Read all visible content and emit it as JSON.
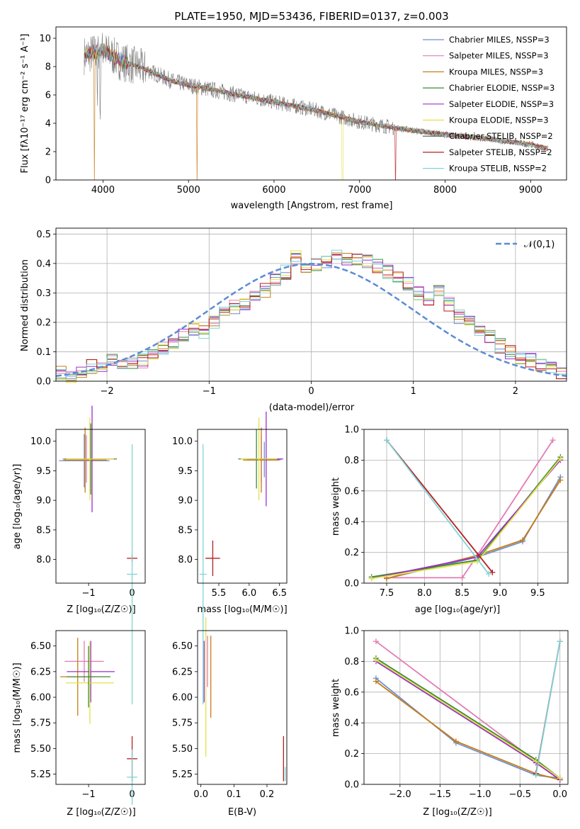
{
  "chart_data": [
    {
      "id": "spectrum",
      "type": "line",
      "title": "PLATE=1950, MJD=53436, FIBERID=0137, z=0.003",
      "xlabel": "wavelength [Angstrom, rest frame]",
      "ylabel": "Flux [fλ10⁻¹⁷ erg cm⁻² s⁻¹ A⁻¹]",
      "xlim": [
        3450,
        9420
      ],
      "ylim": [
        0,
        10.8
      ],
      "xticks": [
        "4000",
        "5000",
        "6000",
        "7000",
        "8000",
        "9000"
      ],
      "yticks": [
        "0",
        "2",
        "4",
        "6",
        "8",
        "10"
      ],
      "grid": false,
      "legend_position": "top-right",
      "data_note": "grey line = observed spectrum; coloured lines = model fits",
      "series": [
        {
          "name": "Chabrier MILES, N_SSP=3",
          "color": "#6f8fcf"
        },
        {
          "name": "Salpeter MILES, N_SSP=3",
          "color": "#e37bb3"
        },
        {
          "name": "Kroupa MILES, N_SSP=3",
          "color": "#c67d16"
        },
        {
          "name": "Chabrier ELODIE, N_SSP=3",
          "color": "#3a8a35"
        },
        {
          "name": "Salpeter ELODIE, N_SSP=3",
          "color": "#9b30c8"
        },
        {
          "name": "Kroupa ELODIE, N_SSP=3",
          "color": "#e2e24a"
        },
        {
          "name": "Chabrier STELIB, N_SSP=2",
          "color": "#555555"
        },
        {
          "name": "Salpeter STELIB, N_SSP=2",
          "color": "#b41f1f"
        },
        {
          "name": "Kroupa STELIB, N_SSP=2",
          "color": "#7fd3d8"
        }
      ],
      "spectrum_knots_x": [
        3800,
        4000,
        4200,
        4500,
        4800,
        5000,
        5500,
        6000,
        6500,
        7000,
        7500,
        8000,
        8500,
        9000,
        9200
      ],
      "spectrum_knots_y": [
        8.8,
        9.2,
        8.4,
        7.8,
        7.0,
        6.7,
        6.1,
        5.5,
        4.9,
        4.1,
        3.6,
        3.2,
        2.9,
        2.5,
        2.2
      ]
    },
    {
      "id": "residuals",
      "type": "line",
      "xlabel": "(data-model)/error",
      "ylabel": "Normed distribution",
      "xlim": [
        -2.5,
        2.5
      ],
      "ylim": [
        0,
        0.52
      ],
      "xticks": [
        "−2",
        "−1",
        "0",
        "1",
        "2"
      ],
      "yticks": [
        "0.0",
        "0.1",
        "0.2",
        "0.3",
        "0.4",
        "0.5"
      ],
      "grid": true,
      "legend_position": "top-right",
      "legend": [
        "𝒩(0,1)"
      ],
      "hist_bins": 50,
      "hist_heights": [
        0.03,
        0.02,
        0.03,
        0.05,
        0.04,
        0.07,
        0.05,
        0.06,
        0.07,
        0.09,
        0.11,
        0.13,
        0.16,
        0.18,
        0.17,
        0.2,
        0.23,
        0.25,
        0.26,
        0.29,
        0.31,
        0.35,
        0.37,
        0.42,
        0.38,
        0.4,
        0.41,
        0.43,
        0.41,
        0.42,
        0.41,
        0.39,
        0.37,
        0.35,
        0.33,
        0.3,
        0.28,
        0.3,
        0.26,
        0.22,
        0.21,
        0.17,
        0.15,
        0.12,
        0.1,
        0.08,
        0.07,
        0.05,
        0.04,
        0.03
      ]
    },
    {
      "id": "age-vs-Z",
      "type": "scatter",
      "xlabel": "Z [log₁₀(Z/Z☉)]",
      "ylabel": "age  [log₁₀(age/yr)]",
      "xlim": [
        -1.75,
        0.3
      ],
      "ylim": [
        7.6,
        10.2
      ],
      "xticks": [
        "−1",
        "0"
      ],
      "yticks": [
        "8.0",
        "8.5",
        "9.0",
        "9.5",
        "10.0"
      ],
      "points": [
        {
          "x": -1.1,
          "y": 9.67,
          "xerr": 0.58,
          "yerr": 0.45,
          "color": "#6f8fcf"
        },
        {
          "x": -1.05,
          "y": 9.7,
          "xerr": 0.55,
          "yerr": 0.4,
          "color": "#e37bb3"
        },
        {
          "x": -1.08,
          "y": 9.68,
          "xerr": 0.5,
          "yerr": 0.55,
          "color": "#c67d16"
        },
        {
          "x": -0.95,
          "y": 9.7,
          "xerr": 0.6,
          "yerr": 0.6,
          "color": "#3a8a35"
        },
        {
          "x": -0.92,
          "y": 9.7,
          "xerr": 0.5,
          "yerr": 0.9,
          "color": "#9b30c8"
        },
        {
          "x": -0.97,
          "y": 9.7,
          "xerr": 0.55,
          "yerr": 0.7,
          "color": "#e2e24a"
        },
        {
          "x": 0.0,
          "y": 8.02,
          "xerr": 0.12,
          "yerr": 0.06,
          "color": "#b41f1f"
        },
        {
          "x": 0.0,
          "y": 7.75,
          "xerr": 0.12,
          "yerr": 2.2,
          "color": "#7fd3d8"
        }
      ]
    },
    {
      "id": "age-vs-mass",
      "type": "scatter",
      "xlabel": "mass [log₁₀(M/M☉)]",
      "ylabel": "",
      "xlim": [
        5.15,
        6.62
      ],
      "ylim": [
        7.6,
        10.2
      ],
      "xticks": [
        "5.5",
        "6.0",
        "6.5"
      ],
      "yticks": [
        "8.0",
        "8.5",
        "9.0",
        "9.5",
        "10.0"
      ],
      "points": [
        {
          "x": 6.25,
          "y": 9.69,
          "xerr": 0.28,
          "yerr": 0.3,
          "color": "#6f8fcf"
        },
        {
          "x": 6.2,
          "y": 9.7,
          "xerr": 0.3,
          "yerr": 0.4,
          "color": "#e37bb3"
        },
        {
          "x": 6.2,
          "y": 9.68,
          "xerr": 0.3,
          "yerr": 0.55,
          "color": "#c67d16"
        },
        {
          "x": 6.12,
          "y": 9.7,
          "xerr": 0.3,
          "yerr": 0.5,
          "color": "#3a8a35"
        },
        {
          "x": 6.28,
          "y": 9.7,
          "xerr": 0.28,
          "yerr": 0.8,
          "color": "#9b30c8"
        },
        {
          "x": 6.16,
          "y": 9.7,
          "xerr": 0.3,
          "yerr": 0.7,
          "color": "#e2e24a"
        },
        {
          "x": 5.4,
          "y": 8.02,
          "xerr": 0.12,
          "yerr": 0.3,
          "color": "#b41f1f"
        },
        {
          "x": 5.24,
          "y": 7.75,
          "xerr": 0.06,
          "yerr": 2.2,
          "color": "#7fd3d8"
        }
      ]
    },
    {
      "id": "mass-weight-vs-age",
      "type": "line",
      "xlabel": "age  [log₁₀(age/yr)]",
      "ylabel": "mass weight",
      "xlim": [
        7.2,
        9.9
      ],
      "ylim": [
        0,
        1.0
      ],
      "xticks": [
        "7.5",
        "8.0",
        "8.5",
        "9.0",
        "9.5"
      ],
      "yticks": [
        "0.0",
        "0.2",
        "0.4",
        "0.6",
        "0.8",
        "1.0"
      ],
      "grid": true,
      "series": [
        {
          "color": "#6f8fcf",
          "x": [
            7.5,
            8.7,
            9.3,
            9.8
          ],
          "y": [
            0.03,
            0.17,
            0.27,
            0.69
          ]
        },
        {
          "color": "#e37bb3",
          "x": [
            7.5,
            8.5,
            8.7,
            9.7
          ],
          "y": [
            0.035,
            0.035,
            0.18,
            0.93
          ]
        },
        {
          "color": "#c67d16",
          "x": [
            7.5,
            8.7,
            9.3,
            9.8
          ],
          "y": [
            0.03,
            0.18,
            0.28,
            0.67
          ]
        },
        {
          "color": "#3a8a35",
          "x": [
            7.3,
            8.7,
            9.8
          ],
          "y": [
            0.04,
            0.15,
            0.82
          ]
        },
        {
          "color": "#9b30c8",
          "x": [
            7.3,
            8.7,
            9.8
          ],
          "y": [
            0.03,
            0.17,
            0.8
          ]
        },
        {
          "color": "#e2e24a",
          "x": [
            7.3,
            8.7,
            9.8
          ],
          "y": [
            0.03,
            0.14,
            0.81
          ]
        },
        {
          "color": "#b41f1f",
          "x": [
            7.5,
            8.9
          ],
          "y": [
            0.93,
            0.07
          ]
        },
        {
          "color": "#7fd3d8",
          "x": [
            7.5,
            8.85
          ],
          "y": [
            0.93,
            0.06
          ]
        }
      ]
    },
    {
      "id": "mass-vs-Z",
      "type": "scatter",
      "xlabel": "Z [log₁₀(Z/Z☉)]",
      "ylabel": "mass [log₁₀(M/M☉)]",
      "xlim": [
        -1.75,
        0.3
      ],
      "ylim": [
        5.15,
        6.65
      ],
      "xticks": [
        "−1",
        "0"
      ],
      "yticks": [
        "5.25",
        "5.50",
        "5.75",
        "6.00",
        "6.25",
        "6.50"
      ],
      "points": [
        {
          "x": -1.1,
          "y": 6.35,
          "xerr": 0.45,
          "yerr": 0.2,
          "color": "#e37bb3"
        },
        {
          "x": -1.25,
          "y": 6.2,
          "xerr": 0.4,
          "yerr": 0.38,
          "color": "#c67d16"
        },
        {
          "x": -0.95,
          "y": 6.25,
          "xerr": 0.55,
          "yerr": 0.3,
          "color": "#9b30c8"
        },
        {
          "x": -0.97,
          "y": 6.14,
          "xerr": 0.55,
          "yerr": 0.4,
          "color": "#e2e24a"
        },
        {
          "x": -1.0,
          "y": 6.2,
          "xerr": 0.5,
          "yerr": 0.3,
          "color": "#3a8a35"
        },
        {
          "x": 0.0,
          "y": 5.4,
          "xerr": 0.12,
          "yerr": 0.22,
          "color": "#b41f1f"
        },
        {
          "x": 0.0,
          "y": 5.22,
          "xerr": 0.12,
          "yerr": 0.27,
          "color": "#7fd3d8"
        }
      ]
    },
    {
      "id": "mass-vs-ebv",
      "type": "scatter",
      "xlabel": "E(B-V)",
      "ylabel": "",
      "xlim": [
        -0.01,
        0.26
      ],
      "ylim": [
        5.15,
        6.65
      ],
      "xticks": [
        "0.0",
        "0.1",
        "0.2"
      ],
      "yticks": [
        "5.25",
        "5.50",
        "5.75",
        "6.00",
        "6.25",
        "6.50"
      ],
      "points": [
        {
          "x": 0.02,
          "y": 6.35,
          "xerr": 0,
          "yerr": 0.25,
          "color": "#e37bb3"
        },
        {
          "x": 0.03,
          "y": 6.2,
          "xerr": 0,
          "yerr": 0.4,
          "color": "#c67d16"
        },
        {
          "x": 0.01,
          "y": 6.25,
          "xerr": 0,
          "yerr": 0.3,
          "color": "#9b30c8"
        },
        {
          "x": 0.015,
          "y": 6.1,
          "xerr": 0,
          "yerr": 0.68,
          "color": "#e2e24a"
        },
        {
          "x": 0.25,
          "y": 5.4,
          "xerr": 0,
          "yerr": 0.22,
          "color": "#b41f1f"
        },
        {
          "x": 0.255,
          "y": 5.25,
          "xerr": 0,
          "yerr": 0.07,
          "color": "#7fd3d8"
        }
      ]
    },
    {
      "id": "mass-weight-vs-Z",
      "type": "line",
      "xlabel": "Z [log₁₀(Z/Z☉)]",
      "ylabel": "mass weight",
      "xlim": [
        -2.45,
        0.1
      ],
      "ylim": [
        0,
        1.0
      ],
      "xticks": [
        "−2.0",
        "−1.5",
        "−1.0",
        "−0.5",
        "0.0"
      ],
      "yticks": [
        "0.0",
        "0.2",
        "0.4",
        "0.6",
        "0.8",
        "1.0"
      ],
      "grid": true,
      "series": [
        {
          "color": "#6f8fcf",
          "x": [
            -2.3,
            -1.3,
            -0.3,
            0.0
          ],
          "y": [
            0.69,
            0.27,
            0.06,
            0.04
          ]
        },
        {
          "color": "#e37bb3",
          "x": [
            -2.3,
            -0.3,
            0.0
          ],
          "y": [
            0.93,
            0.15,
            0.04
          ]
        },
        {
          "color": "#c67d16",
          "x": [
            -2.3,
            -1.3,
            -0.3,
            0.0
          ],
          "y": [
            0.67,
            0.28,
            0.07,
            0.03
          ]
        },
        {
          "color": "#3a8a35",
          "x": [
            -2.3,
            -0.3,
            0.0
          ],
          "y": [
            0.82,
            0.16,
            0.04
          ]
        },
        {
          "color": "#9b30c8",
          "x": [
            -2.3,
            -0.3,
            0.0
          ],
          "y": [
            0.8,
            0.14,
            0.03
          ]
        },
        {
          "color": "#e2e24a",
          "x": [
            -2.3,
            -0.3,
            0.0
          ],
          "y": [
            0.81,
            0.15,
            0.04
          ]
        },
        {
          "color": "#b41f1f",
          "x": [
            -0.3,
            0.0
          ],
          "y": [
            0.07,
            0.93
          ]
        },
        {
          "color": "#7fd3d8",
          "x": [
            -0.3,
            0.0
          ],
          "y": [
            0.06,
            0.93
          ]
        }
      ]
    }
  ]
}
